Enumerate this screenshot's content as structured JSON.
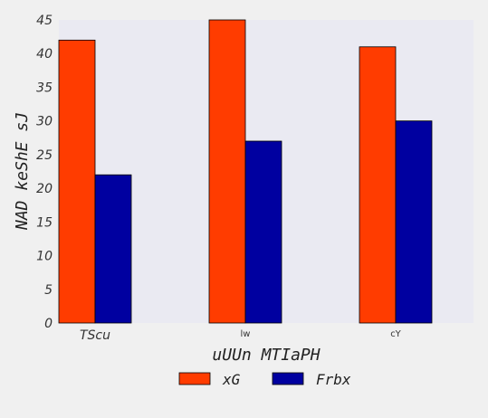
{
  "chart_data": {
    "type": "bar",
    "title": "",
    "xlabel": "uUUn MTIaPH",
    "ylabel": "NAD keShE sJ",
    "categories": [
      "TScu",
      "lw",
      "cY"
    ],
    "series": [
      {
        "name": "xG",
        "color": "#ff3c00",
        "values": [
          42,
          45,
          41
        ]
      },
      {
        "name": "Frbx",
        "color": "#0000a0",
        "values": [
          22,
          27,
          30
        ]
      }
    ],
    "ylim": [
      0,
      45
    ],
    "yticks": [
      0,
      5,
      10,
      15,
      20,
      25,
      30,
      35,
      40,
      45
    ],
    "grid": false,
    "legend_position": "bottom-center",
    "plot_background": "#eaeaf2",
    "page_background": "#f0f0f0"
  }
}
